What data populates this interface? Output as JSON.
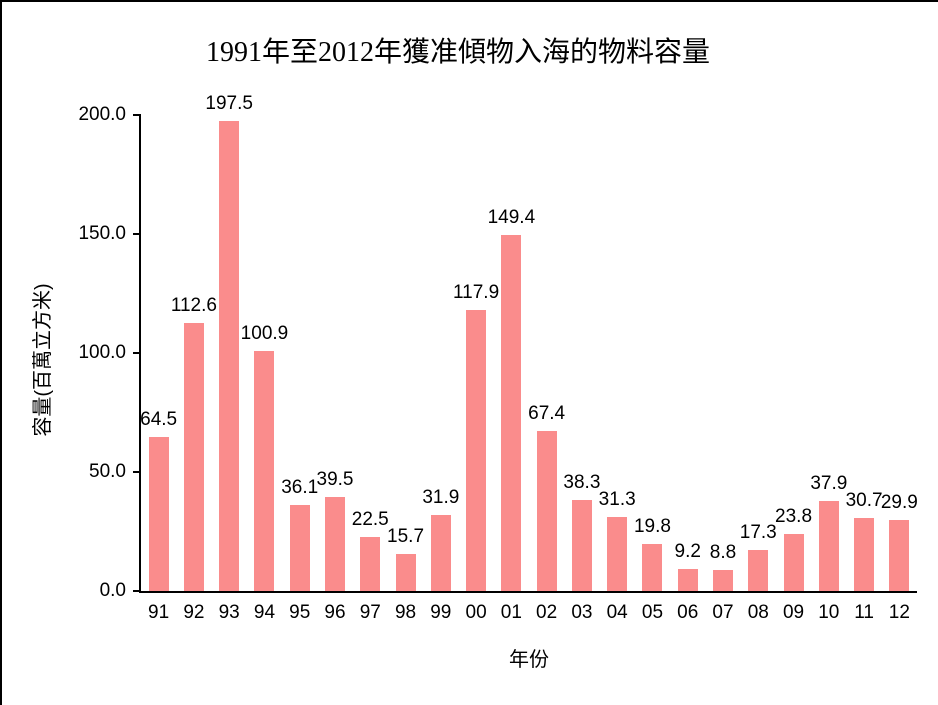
{
  "chart_data": {
    "type": "bar",
    "title": "1991年至2012年獲准傾物入海的物料容量",
    "xlabel": "年份",
    "ylabel": "容量(百萬立方米)",
    "categories": [
      "91",
      "92",
      "93",
      "94",
      "95",
      "96",
      "97",
      "98",
      "99",
      "00",
      "01",
      "02",
      "03",
      "04",
      "05",
      "06",
      "07",
      "08",
      "09",
      "10",
      "11",
      "12"
    ],
    "values": [
      64.5,
      112.6,
      197.5,
      100.9,
      36.1,
      39.5,
      22.5,
      15.7,
      31.9,
      117.9,
      149.4,
      67.4,
      38.3,
      31.3,
      19.8,
      9.2,
      8.8,
      17.3,
      23.8,
      37.9,
      30.7,
      29.9
    ],
    "ylim": [
      0,
      200
    ],
    "ytick_labels": [
      "0.0",
      "50.0",
      "100.0",
      "150.0",
      "200.0"
    ],
    "bar_color": "#FA8C8C",
    "axis_color": "#000000",
    "grid": false,
    "legend": "none",
    "value_label_decimals": 1
  }
}
